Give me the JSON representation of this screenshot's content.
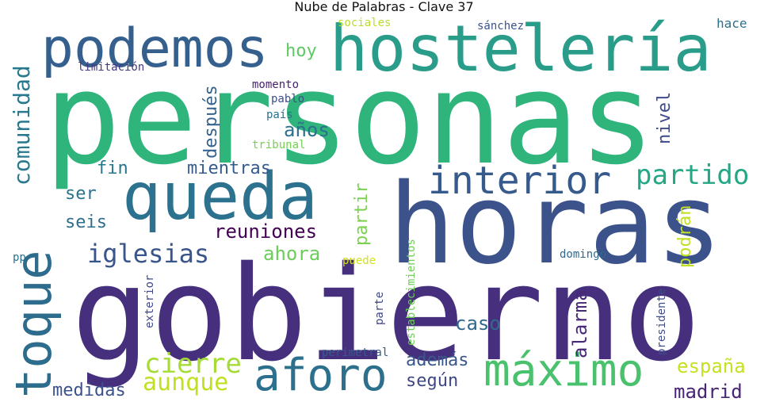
{
  "title": "Nube de Palabras - Clave 37",
  "words": {
    "personas": {
      "text": "personas",
      "color": "#2fb47c"
    },
    "gobierno": {
      "text": "gobierno",
      "color": "#46307e"
    },
    "horas": {
      "text": "horas",
      "color": "#3b528b"
    },
    "hosteleria": {
      "text": "hostelería",
      "color": "#2a9d8a"
    },
    "queda": {
      "text": "queda",
      "color": "#2c728e"
    },
    "podemos": {
      "text": "podemos",
      "color": "#355f8d"
    },
    "toque": {
      "text": "toque",
      "color": "#2e6c8e"
    },
    "maximo": {
      "text": "máximo",
      "color": "#4ac16d"
    },
    "aforo": {
      "text": "aforo",
      "color": "#2d708e"
    },
    "interior": {
      "text": "interior",
      "color": "#375a8c"
    },
    "partido": {
      "text": "partido",
      "color": "#22a884"
    },
    "comunidad": {
      "text": "comunidad",
      "color": "#2a788e"
    },
    "iglesias": {
      "text": "iglesias",
      "color": "#3a548c"
    },
    "cierre": {
      "text": "cierre",
      "color": "#a5db36"
    },
    "aunque": {
      "text": "aunque",
      "color": "#c2df23"
    },
    "hoy": {
      "text": "hoy",
      "color": "#5ec962"
    },
    "anos": {
      "text": "años",
      "color": "#2d708e"
    },
    "despues": {
      "text": "después",
      "color": "#34618d"
    },
    "mientras": {
      "text": "mientras",
      "color": "#365c8d"
    },
    "fin": {
      "text": "fin",
      "color": "#2a768e"
    },
    "ser": {
      "text": "ser",
      "color": "#2c738e"
    },
    "seis": {
      "text": "seis",
      "color": "#2e6e8e"
    },
    "reuniones": {
      "text": "reuniones",
      "color": "#440154"
    },
    "ahora": {
      "text": "ahora",
      "color": "#6ccd5a"
    },
    "partir": {
      "text": "partir",
      "color": "#7ad151"
    },
    "podran": {
      "text": "podrán",
      "color": "#c0df25"
    },
    "nivel": {
      "text": "nivel",
      "color": "#3e4a89"
    },
    "alarma": {
      "text": "alarma",
      "color": "#482878"
    },
    "caso": {
      "text": "caso",
      "color": "#31688e"
    },
    "ademas": {
      "text": "además",
      "color": "#38588c"
    },
    "segun": {
      "text": "según",
      "color": "#3f4788"
    },
    "medidas": {
      "text": "medidas",
      "color": "#3b528b"
    },
    "espana": {
      "text": "españa",
      "color": "#c8e020"
    },
    "madrid": {
      "text": "madrid",
      "color": "#482475"
    },
    "domingo": {
      "text": "domingo",
      "color": "#31688e"
    },
    "presidente": {
      "text": "presidente",
      "color": "#3e4c8a"
    },
    "establecimientos": {
      "text": "establecimientos",
      "color": "#6ece58"
    },
    "parte": {
      "text": "parte",
      "color": "#3f4889"
    },
    "puede": {
      "text": "puede",
      "color": "#d2e21b"
    },
    "perimetral": {
      "text": "perimetral",
      "color": "#38598c"
    },
    "exterior": {
      "text": "exterior",
      "color": "#3e4989"
    },
    "pp": {
      "text": "pp",
      "color": "#2c728e"
    },
    "limitacion": {
      "text": "limitación",
      "color": "#453781"
    },
    "momento": {
      "text": "momento",
      "color": "#481f70"
    },
    "pablo": {
      "text": "pablo",
      "color": "#3d4e8a"
    },
    "pais": {
      "text": "país",
      "color": "#2c738e"
    },
    "tribunal": {
      "text": "tribunal",
      "color": "#75d054"
    },
    "sociales": {
      "text": "sociales",
      "color": "#b8de29"
    },
    "sanchez": {
      "text": "sánchez",
      "color": "#3b528b"
    },
    "hace": {
      "text": "hace",
      "color": "#2d708e"
    }
  }
}
